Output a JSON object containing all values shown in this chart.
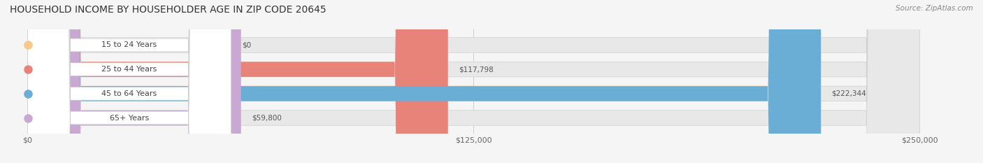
{
  "title": "HOUSEHOLD INCOME BY HOUSEHOLDER AGE IN ZIP CODE 20645",
  "source": "Source: ZipAtlas.com",
  "categories": [
    "15 to 24 Years",
    "25 to 44 Years",
    "45 to 64 Years",
    "65+ Years"
  ],
  "values": [
    0,
    117798,
    222344,
    59800
  ],
  "bar_colors": [
    "#f5c98a",
    "#e8837a",
    "#6aaed6",
    "#c9a8d4"
  ],
  "label_colors": [
    "#e8b870",
    "#d96b60",
    "#5b9ec9",
    "#b88ec0"
  ],
  "max_value": 250000,
  "x_ticks": [
    0,
    125000,
    250000
  ],
  "x_tick_labels": [
    "$0",
    "$125,000",
    "$250,000"
  ],
  "background_color": "#f5f5f5",
  "bar_background": "#e8e8e8",
  "value_labels": [
    "$0",
    "$117,798",
    "$222,344",
    "$59,800"
  ],
  "figsize": [
    14.06,
    2.33
  ],
  "dpi": 100
}
